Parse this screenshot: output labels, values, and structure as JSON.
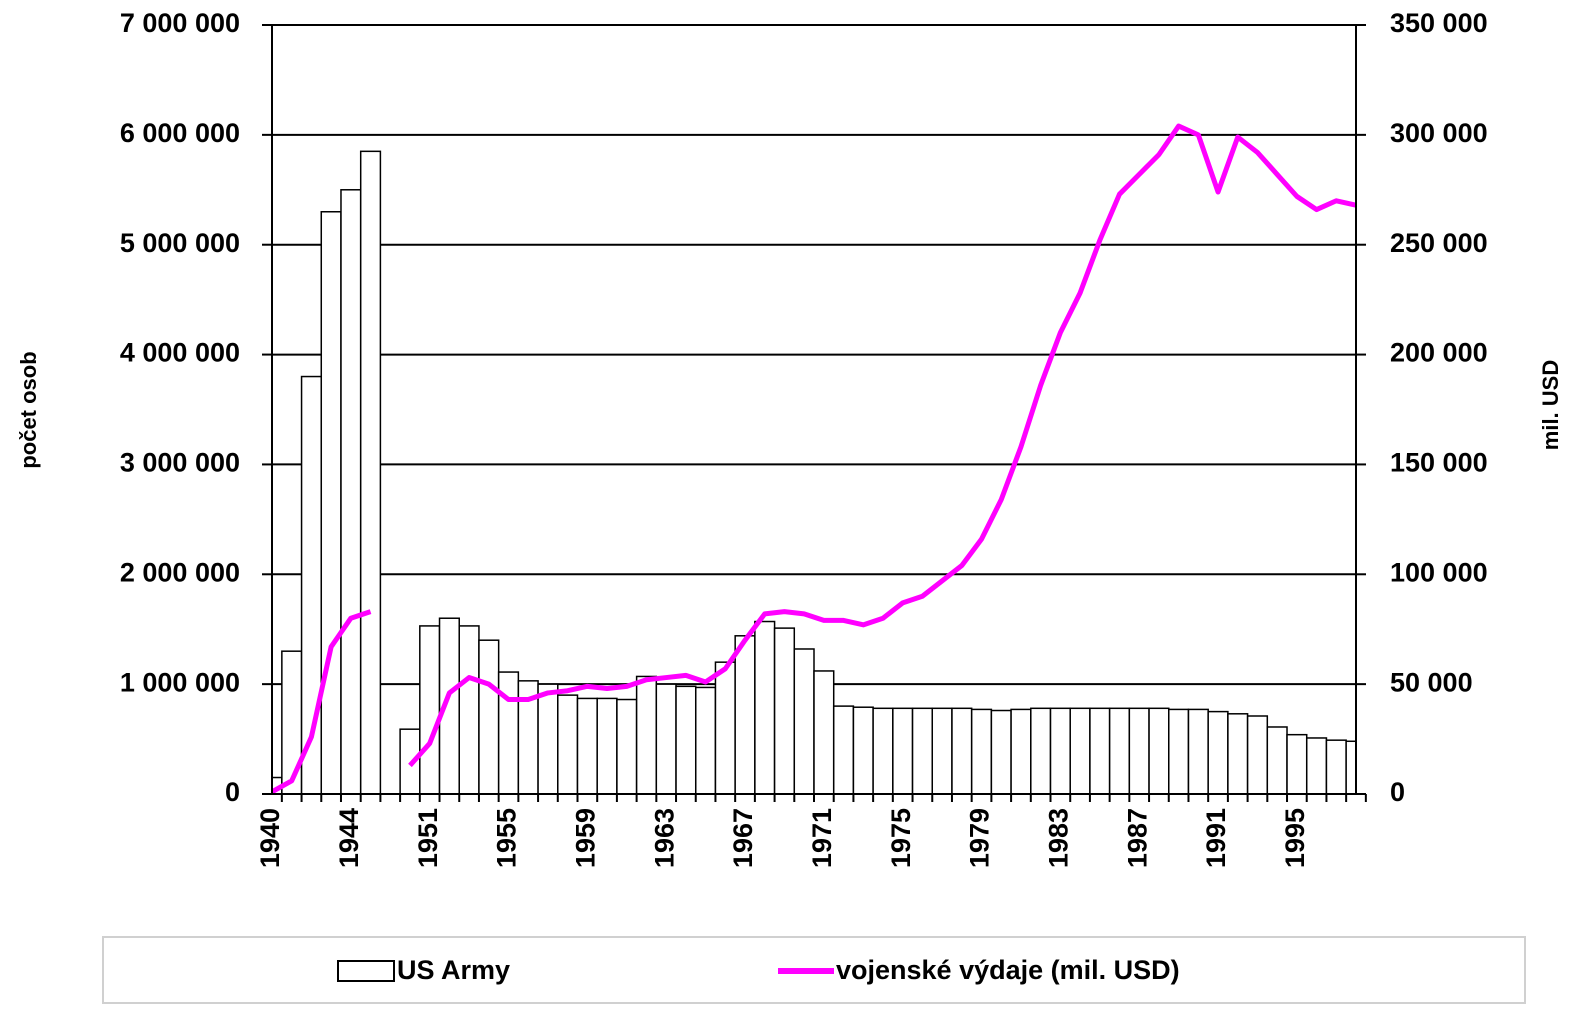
{
  "chart_data": {
    "type": "bar",
    "categories": [
      "1940",
      null,
      null,
      null,
      "1944",
      null,
      null,
      null,
      "1951",
      null,
      null,
      null,
      "1955",
      null,
      null,
      null,
      "1959",
      null,
      null,
      null,
      "1963",
      null,
      null,
      null,
      "1967",
      null,
      null,
      null,
      "1971",
      null,
      null,
      null,
      "1975",
      null,
      null,
      null,
      "1979",
      null,
      null,
      null,
      "1983",
      null,
      null,
      null,
      "1987",
      null,
      null,
      null,
      "1991",
      null,
      null,
      null,
      "1995",
      null,
      null,
      null
    ],
    "series": [
      {
        "name": "US Army",
        "type": "bar",
        "color": "#ffffff",
        "values": [
          150000,
          1300000,
          3800000,
          5300000,
          5500000,
          5850000,
          null,
          590000,
          1530000,
          1600000,
          1530000,
          1400000,
          1110000,
          1030000,
          1000000,
          900000,
          870000,
          870000,
          860000,
          1070000,
          1000000,
          980000,
          970000,
          1200000,
          1440000,
          1570000,
          1510000,
          1320000,
          1120000,
          800000,
          790000,
          780000,
          780000,
          780000,
          780000,
          780000,
          770000,
          760000,
          770000,
          780000,
          780000,
          780000,
          780000,
          780000,
          780000,
          780000,
          770000,
          770000,
          750000,
          730000,
          710000,
          610000,
          540000,
          510000,
          490000,
          480000
        ]
      },
      {
        "name": "vojenské výdaje (mil. USD)",
        "type": "line",
        "axis": "y2",
        "color": "#ff00ff",
        "values": [
          1000,
          6000,
          26000,
          67000,
          80000,
          83000,
          null,
          13000,
          23000,
          46000,
          53000,
          50000,
          43000,
          43000,
          46000,
          47000,
          49000,
          48000,
          49000,
          52000,
          53000,
          54000,
          51000,
          57000,
          70000,
          82000,
          83000,
          82000,
          79000,
          79000,
          77000,
          80000,
          87000,
          90000,
          97000,
          104000,
          116000,
          134000,
          158000,
          186000,
          210000,
          228000,
          252000,
          273000,
          282000,
          291000,
          304000,
          300000,
          274000,
          299000,
          292000,
          282000,
          272000,
          266000,
          270000,
          268000
        ]
      }
    ],
    "ylabel": "počet osob",
    "y2label": "mil. USD",
    "ylim": [
      0,
      7000000
    ],
    "yticks": [
      0,
      {
        "value": 1000000,
        "label": "1 000 000"
      },
      {
        "value": 2000000,
        "label": "2 000 000"
      },
      {
        "value": 3000000,
        "label": "3 000 000"
      },
      {
        "value": 4000000,
        "label": "4 000 000"
      },
      {
        "value": 5000000,
        "label": "5 000 000"
      },
      {
        "value": 6000000,
        "label": "6 000 000"
      },
      {
        "value": 7000000,
        "label": "7 000 000"
      }
    ],
    "y2lim": [
      0,
      350000
    ],
    "y2ticks": [
      0,
      {
        "value": 50000,
        "label": "50 000"
      },
      {
        "value": 100000,
        "label": "100 000"
      },
      {
        "value": 150000,
        "label": "150 000"
      },
      {
        "value": 200000,
        "label": "200 000"
      },
      {
        "value": 250000,
        "label": "250 000"
      },
      {
        "value": 300000,
        "label": "300 000"
      },
      {
        "value": 350000,
        "label": "350 000"
      }
    ],
    "grid": true,
    "legend": "bottom"
  }
}
